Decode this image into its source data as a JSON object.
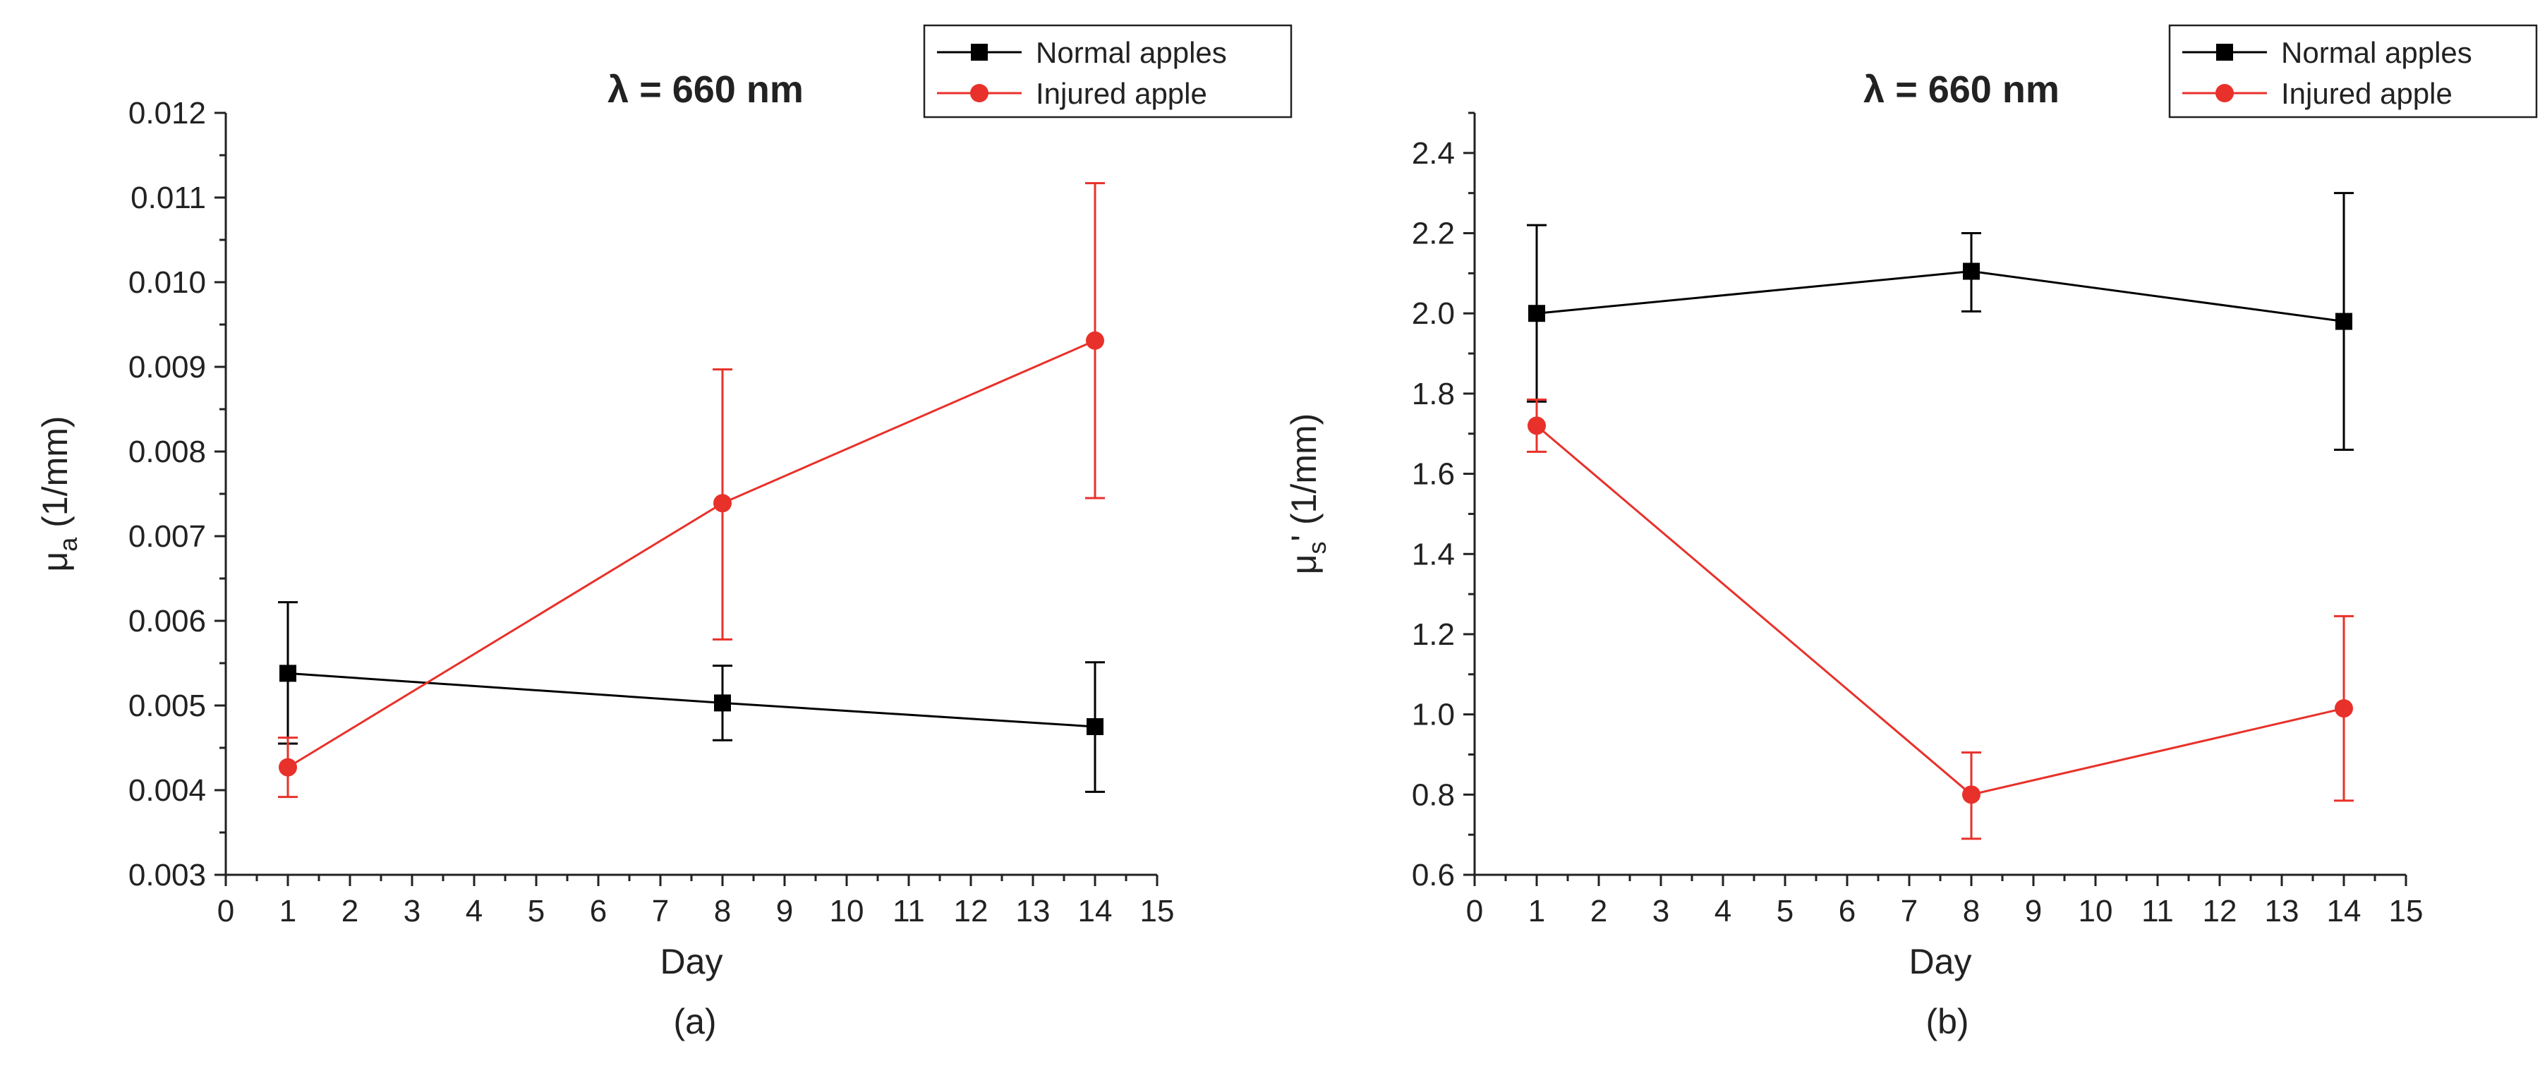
{
  "chart_data": [
    {
      "type": "line",
      "panel_label": "(a)",
      "title": "λ = 660 nm",
      "xlabel": "Day",
      "ylabel": {
        "main": "μ",
        "sub": "a",
        "rest": " (1/mm)"
      },
      "xlim": [
        0,
        15
      ],
      "ylim": [
        0.003,
        0.012
      ],
      "x_ticks": [
        0,
        1,
        2,
        3,
        4,
        5,
        6,
        7,
        8,
        9,
        10,
        11,
        12,
        13,
        14,
        15
      ],
      "y_ticks": [
        "0.003",
        "0.004",
        "0.005",
        "0.006",
        "0.007",
        "0.008",
        "0.009",
        "0.010",
        "0.011",
        "0.012"
      ],
      "grid": false,
      "legend_position": "top-right",
      "series": [
        {
          "name": "Normal apples",
          "color": "#000000",
          "marker": "square",
          "x": [
            1,
            8,
            14
          ],
          "y": [
            0.00538,
            0.00503,
            0.00475
          ],
          "error_low": [
            0.00455,
            0.00459,
            0.00398
          ],
          "error_high": [
            0.00622,
            0.00547,
            0.00551
          ]
        },
        {
          "name": "Injured apple",
          "color": "#e8312a",
          "marker": "circle",
          "x": [
            1,
            8,
            14
          ],
          "y": [
            0.00427,
            0.00739,
            0.00931
          ],
          "error_low": [
            0.00392,
            0.00578,
            0.00745
          ],
          "error_high": [
            0.00462,
            0.00897,
            0.01117
          ]
        }
      ]
    },
    {
      "type": "line",
      "panel_label": "(b)",
      "title": "λ = 660 nm",
      "xlabel": "Day",
      "ylabel": {
        "main": "μ",
        "sub": "s",
        "rest": "' (1/mm)"
      },
      "xlim": [
        0,
        15
      ],
      "ylim": [
        0.6,
        2.5
      ],
      "x_ticks": [
        0,
        1,
        2,
        3,
        4,
        5,
        6,
        7,
        8,
        9,
        10,
        11,
        12,
        13,
        14,
        15
      ],
      "y_ticks": [
        "0.6",
        "0.8",
        "1.0",
        "1.2",
        "1.4",
        "1.6",
        "1.8",
        "2.0",
        "2.2",
        "2.4"
      ],
      "grid": false,
      "legend_position": "top-right",
      "series": [
        {
          "name": "Normal apples",
          "color": "#000000",
          "marker": "square",
          "x": [
            1,
            8,
            14
          ],
          "y": [
            2.0,
            2.105,
            1.98
          ],
          "error_low": [
            1.78,
            2.005,
            1.66
          ],
          "error_high": [
            2.22,
            2.2,
            2.3
          ]
        },
        {
          "name": "Injured apple",
          "color": "#e8312a",
          "marker": "circle",
          "x": [
            1,
            8,
            14
          ],
          "y": [
            1.72,
            0.8,
            1.015
          ],
          "error_low": [
            1.655,
            0.69,
            0.785
          ],
          "error_high": [
            1.785,
            0.905,
            1.245
          ]
        }
      ]
    }
  ]
}
